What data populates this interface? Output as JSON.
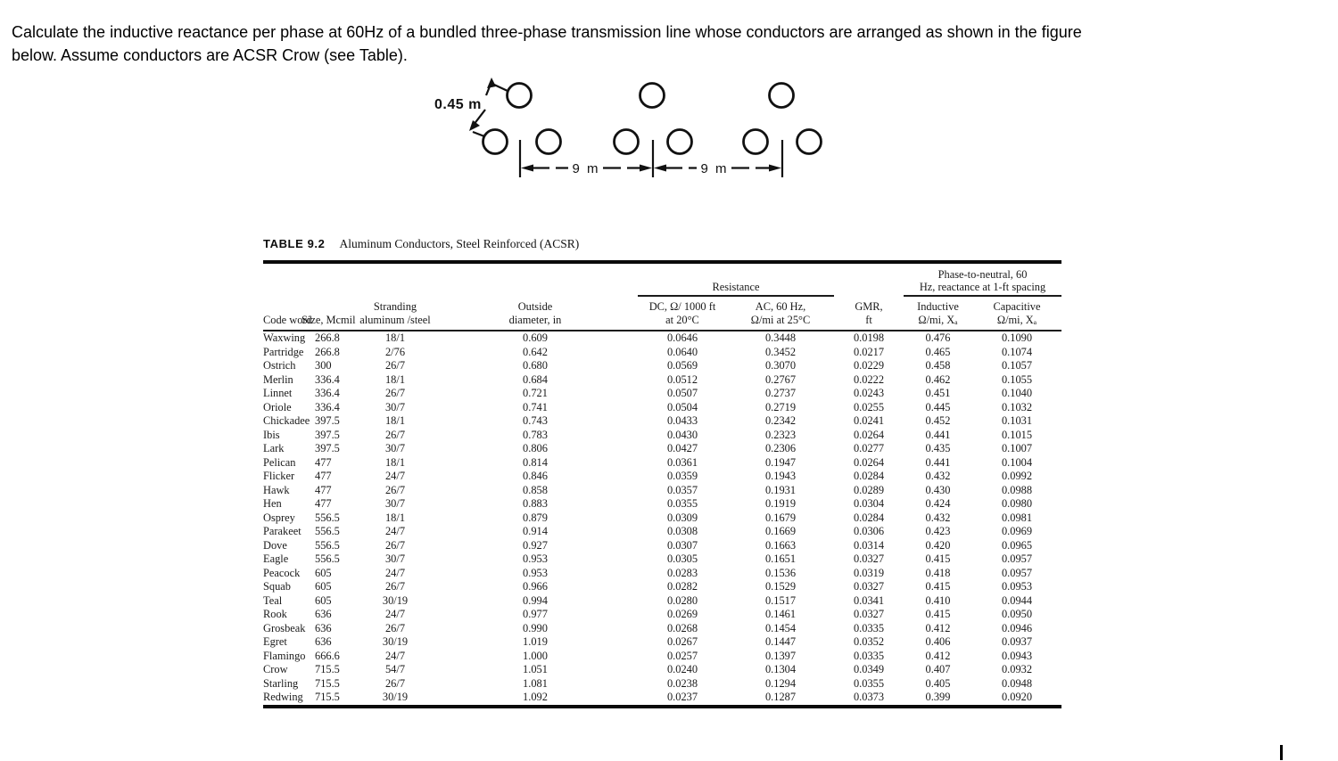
{
  "colors": {
    "ink": "#141414",
    "background": "#ffffff"
  },
  "question": {
    "line1": "Calculate the inductive reactance per phase at 60Hz of a bundled three-phase transmission line whose conductors are arranged as shown in the figure",
    "line2": "below. Assume conductors are ACSR Crow (see Table)."
  },
  "figure": {
    "bundle_spacing_label": "0.45 m",
    "span1_label": "9 m",
    "span2_label": "9 m"
  },
  "table": {
    "title_label": "TABLE 9.2",
    "title_text": "Aluminum Conductors, Steel Reinforced (ACSR)",
    "group_headers": {
      "resistance": "Resistance",
      "phase_line1": "Phase-to-neutral, 60",
      "phase_line2": "Hz, reactance at 1-ft spacing"
    },
    "columns": [
      {
        "line1": "",
        "line2": "Code word"
      },
      {
        "line1": "",
        "line2": "Size, Mcmil"
      },
      {
        "line1": "Stranding",
        "line2": "aluminum /steel"
      },
      {
        "line1": "Outside",
        "line2": "diameter, in"
      },
      {
        "line1": "DC, Ω/ 1000 ft",
        "line2": "at 20°C"
      },
      {
        "line1": "AC, 60 Hz,",
        "line2": "Ω/mi at 25°C"
      },
      {
        "line1": "GMR,",
        "line2": "ft"
      },
      {
        "line1": "Inductive",
        "line2": "Ω/mi, Xₐ"
      },
      {
        "line1": "Capacitive",
        "line2": "Ω/mi, Xₐ"
      }
    ],
    "rows": [
      [
        "Waxwing",
        "266.8",
        "18/1",
        "0.609",
        "0.0646",
        "0.3448",
        "0.0198",
        "0.476",
        "0.1090"
      ],
      [
        "Partridge",
        "266.8",
        "2/76",
        "0.642",
        "0.0640",
        "0.3452",
        "0.0217",
        "0.465",
        "0.1074"
      ],
      [
        "Ostrich",
        "300",
        "26/7",
        "0.680",
        "0.0569",
        "0.3070",
        "0.0229",
        "0.458",
        "0.1057"
      ],
      [
        "Merlin",
        "336.4",
        "18/1",
        "0.684",
        "0.0512",
        "0.2767",
        "0.0222",
        "0.462",
        "0.1055"
      ],
      [
        "Linnet",
        "336.4",
        "26/7",
        "0.721",
        "0.0507",
        "0.2737",
        "0.0243",
        "0.451",
        "0.1040"
      ],
      [
        "Oriole",
        "336.4",
        "30/7",
        "0.741",
        "0.0504",
        "0.2719",
        "0.0255",
        "0.445",
        "0.1032"
      ],
      [
        "Chickadee",
        "397.5",
        "18/1",
        "0.743",
        "0.0433",
        "0.2342",
        "0.0241",
        "0.452",
        "0.1031"
      ],
      [
        "Ibis",
        "397.5",
        "26/7",
        "0.783",
        "0.0430",
        "0.2323",
        "0.0264",
        "0.441",
        "0.1015"
      ],
      [
        "Lark",
        "397.5",
        "30/7",
        "0.806",
        "0.0427",
        "0.2306",
        "0.0277",
        "0.435",
        "0.1007"
      ],
      [
        "Pelican",
        "477",
        "18/1",
        "0.814",
        "0.0361",
        "0.1947",
        "0.0264",
        "0.441",
        "0.1004"
      ],
      [
        "Flicker",
        "477",
        "24/7",
        "0.846",
        "0.0359",
        "0.1943",
        "0.0284",
        "0.432",
        "0.0992"
      ],
      [
        "Hawk",
        "477",
        "26/7",
        "0.858",
        "0.0357",
        "0.1931",
        "0.0289",
        "0.430",
        "0.0988"
      ],
      [
        "Hen",
        "477",
        "30/7",
        "0.883",
        "0.0355",
        "0.1919",
        "0.0304",
        "0.424",
        "0.0980"
      ],
      [
        "Osprey",
        "556.5",
        "18/1",
        "0.879",
        "0.0309",
        "0.1679",
        "0.0284",
        "0.432",
        "0.0981"
      ],
      [
        "Parakeet",
        "556.5",
        "24/7",
        "0.914",
        "0.0308",
        "0.1669",
        "0.0306",
        "0.423",
        "0.0969"
      ],
      [
        "Dove",
        "556.5",
        "26/7",
        "0.927",
        "0.0307",
        "0.1663",
        "0.0314",
        "0.420",
        "0.0965"
      ],
      [
        "Eagle",
        "556.5",
        "30/7",
        "0.953",
        "0.0305",
        "0.1651",
        "0.0327",
        "0.415",
        "0.0957"
      ],
      [
        "Peacock",
        "605",
        "24/7",
        "0.953",
        "0.0283",
        "0.1536",
        "0.0319",
        "0.418",
        "0.0957"
      ],
      [
        "Squab",
        "605",
        "26/7",
        "0.966",
        "0.0282",
        "0.1529",
        "0.0327",
        "0.415",
        "0.0953"
      ],
      [
        "Teal",
        "605",
        "30/19",
        "0.994",
        "0.0280",
        "0.1517",
        "0.0341",
        "0.410",
        "0.0944"
      ],
      [
        "Rook",
        "636",
        "24/7",
        "0.977",
        "0.0269",
        "0.1461",
        "0.0327",
        "0.415",
        "0.0950"
      ],
      [
        "Grosbeak",
        "636",
        "26/7",
        "0.990",
        "0.0268",
        "0.1454",
        "0.0335",
        "0.412",
        "0.0946"
      ],
      [
        "Egret",
        "636",
        "30/19",
        "1.019",
        "0.0267",
        "0.1447",
        "0.0352",
        "0.406",
        "0.0937"
      ],
      [
        "Flamingo",
        "666.6",
        "24/7",
        "1.000",
        "0.0257",
        "0.1397",
        "0.0335",
        "0.412",
        "0.0943"
      ],
      [
        "Crow",
        "715.5",
        "54/7",
        "1.051",
        "0.0240",
        "0.1304",
        "0.0349",
        "0.407",
        "0.0932"
      ],
      [
        "Starling",
        "715.5",
        "26/7",
        "1.081",
        "0.0238",
        "0.1294",
        "0.0355",
        "0.405",
        "0.0948"
      ],
      [
        "Redwing",
        "715.5",
        "30/19",
        "1.092",
        "0.0237",
        "0.1287",
        "0.0373",
        "0.399",
        "0.0920"
      ]
    ]
  }
}
